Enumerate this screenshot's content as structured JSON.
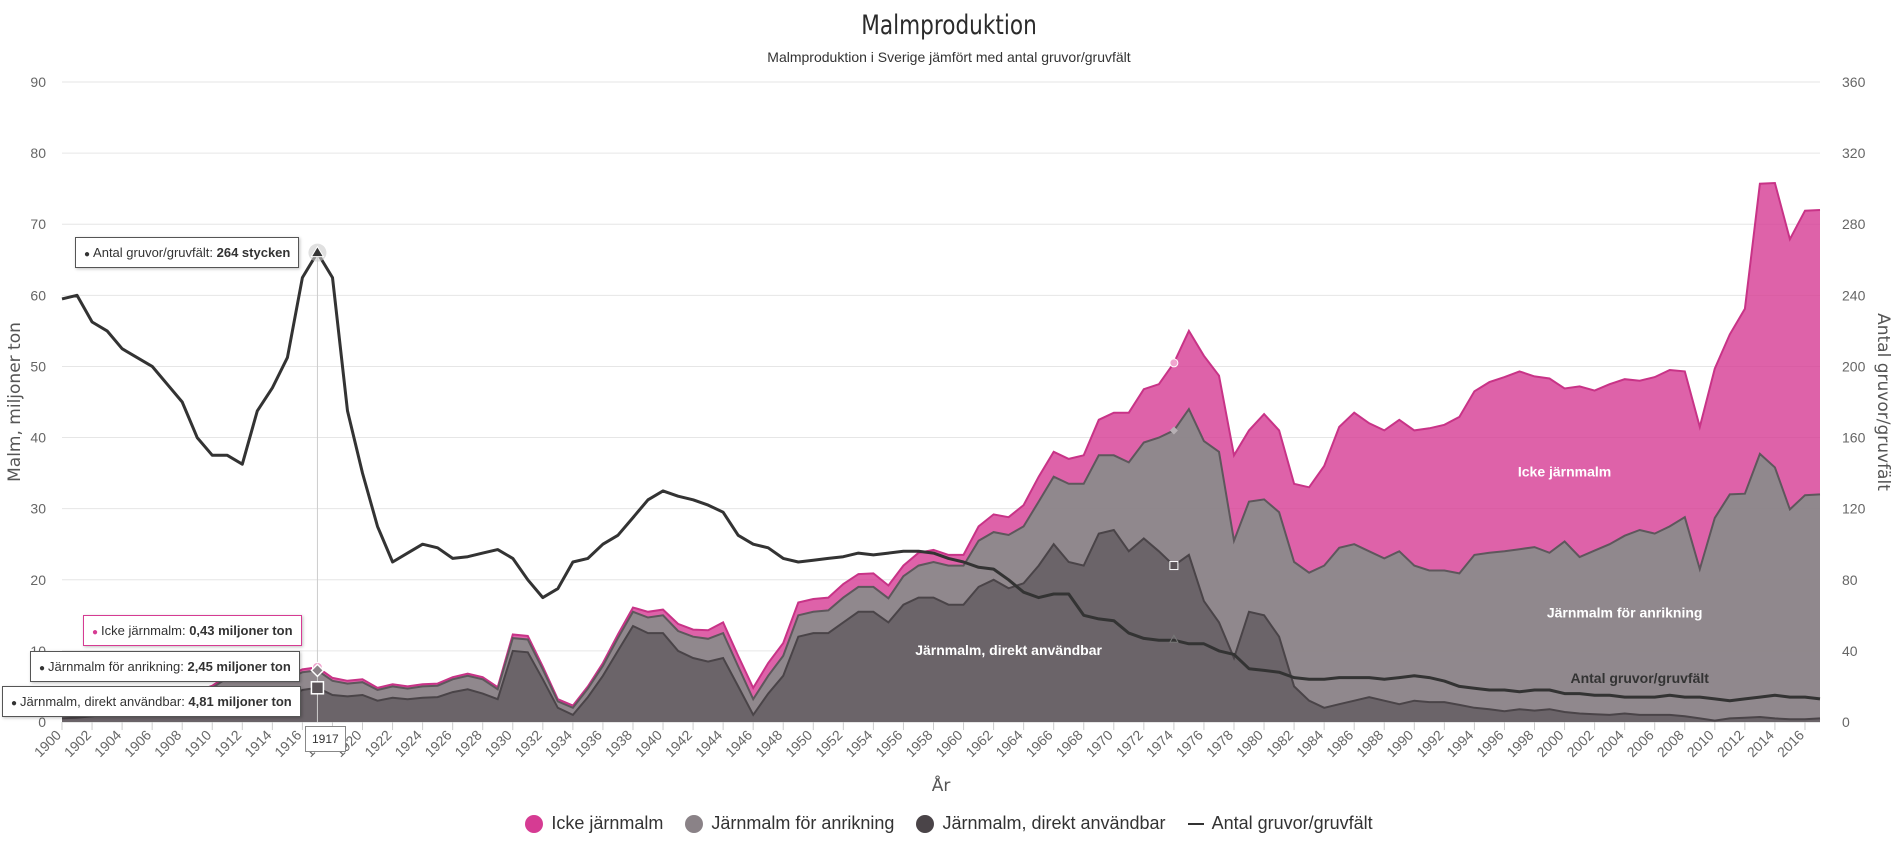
{
  "title": "Malmproduktion",
  "subtitle": "Malmproduktion i Sverige jämfört med antal gruvor/gruvfält",
  "colors": {
    "icke": "#d63b93",
    "anrikning": "#8a8287",
    "direkt": "#6b6469",
    "line": "#333333"
  },
  "chart_data": {
    "type": "area",
    "stacked": true,
    "xlabel": "År",
    "ylabel_left": "Malm, miljoner ton",
    "ylabel_right": "Antal gruvor/gruvfält",
    "ylim_left": [
      0,
      90
    ],
    "ylim_right": [
      0,
      360
    ],
    "yticks_left": [
      0,
      10,
      20,
      30,
      40,
      50,
      60,
      70,
      80,
      90
    ],
    "yticks_right": [
      0,
      40,
      80,
      120,
      160,
      200,
      240,
      280,
      320,
      360
    ],
    "x_start": 1900,
    "x_end": 2017,
    "xtick_labels": [
      "1900",
      "1902",
      "1904",
      "1906",
      "1908",
      "1910",
      "1912",
      "1914",
      "1916",
      "1918",
      "1920",
      "1922",
      "1924",
      "1926",
      "1928",
      "1930",
      "1932",
      "1934",
      "1936",
      "1938",
      "1940",
      "1942",
      "1944",
      "1946",
      "1948",
      "1950",
      "1952",
      "1954",
      "1956",
      "1958",
      "1960",
      "1962",
      "1964",
      "1966",
      "1968",
      "1970",
      "1972",
      "1974",
      "1976",
      "1978",
      "1980",
      "1982",
      "1984",
      "1986",
      "1988",
      "1990",
      "1992",
      "1994",
      "1996",
      "1998",
      "2000",
      "2002",
      "2004",
      "2006",
      "2008",
      "2010",
      "2012",
      "2014",
      "2016"
    ],
    "series": [
      {
        "name": "Järnmalm, direkt användbar",
        "type": "area",
        "axis": "left",
        "values": [
          0.5,
          0.6,
          0.8,
          1.0,
          1.2,
          1.4,
          1.6,
          1.8,
          2.0,
          2.5,
          3.0,
          4.0,
          4.6,
          4.8,
          4.9,
          3.5,
          4.5,
          4.81,
          3.8,
          3.6,
          3.8,
          3.0,
          3.4,
          3.2,
          3.4,
          3.5,
          4.2,
          4.6,
          4.0,
          3.2,
          10.0,
          9.8,
          6.0,
          2.0,
          1.0,
          3.5,
          6.5,
          10.0,
          13.5,
          12.5,
          12.5,
          10.0,
          9.0,
          8.5,
          9.0,
          5.0,
          1.0,
          4.0,
          6.5,
          12.0,
          12.5,
          12.5,
          14.0,
          15.5,
          15.5,
          14.0,
          16.5,
          17.5,
          17.5,
          16.5,
          16.5,
          19.0,
          20.0,
          18.8,
          19.5,
          22.0,
          25.0,
          22.5,
          22.0,
          26.5,
          27.0,
          24.0,
          25.8,
          24.0,
          22.0,
          23.5,
          17.0,
          14.0,
          9.0,
          15.5,
          15.0,
          12.0,
          5.0,
          3.0,
          2.0,
          2.5,
          3.0,
          3.5,
          3.0,
          2.5,
          3.0,
          2.8,
          2.8,
          2.4,
          2.0,
          1.8,
          1.5,
          1.8,
          1.6,
          1.8,
          1.4,
          1.2,
          1.1,
          1.0,
          1.2,
          1.0,
          1.0,
          1.0,
          0.8,
          0.5,
          0.2,
          0.5,
          0.6,
          0.7,
          0.5,
          0.4,
          0.4,
          0.5
        ]
      },
      {
        "name": "Järnmalm för anrikning",
        "type": "area",
        "axis": "left",
        "values": [
          0.5,
          0.5,
          0.6,
          0.6,
          0.7,
          0.8,
          0.9,
          1.0,
          1.2,
          1.5,
          1.8,
          2.2,
          2.5,
          2.5,
          2.5,
          2.5,
          2.5,
          2.45,
          2.0,
          1.8,
          1.8,
          1.5,
          1.6,
          1.5,
          1.6,
          1.6,
          1.8,
          1.9,
          2.0,
          1.4,
          1.8,
          1.8,
          1.4,
          0.9,
          1.0,
          1.2,
          1.4,
          1.8,
          2.0,
          2.2,
          2.5,
          2.8,
          3.0,
          3.2,
          3.5,
          2.8,
          2.2,
          2.5,
          2.8,
          3.0,
          3.0,
          3.2,
          3.5,
          3.5,
          3.5,
          3.4,
          4.0,
          4.5,
          5.0,
          5.5,
          5.5,
          6.5,
          6.7,
          7.5,
          8.0,
          9.0,
          9.5,
          11.0,
          11.5,
          11.0,
          10.5,
          12.5,
          13.5,
          16.0,
          19.0,
          20.5,
          22.5,
          24.0,
          16.5,
          15.5,
          16.3,
          17.5,
          17.5,
          18.0,
          20.0,
          22.0,
          22.0,
          20.5,
          20.0,
          21.5,
          19.0,
          18.5,
          18.5,
          18.5,
          21.5,
          22.0,
          22.5,
          22.5,
          23.0,
          22.0,
          24.0,
          22.0,
          23.0,
          24.0,
          25.0,
          26.0,
          25.5,
          26.5,
          28.0,
          21.0,
          28.5,
          31.5,
          31.5,
          37.0,
          35.3,
          29.5,
          31.5,
          31.5
        ]
      },
      {
        "name": "Icke järnmalm",
        "type": "area",
        "axis": "left",
        "values": [
          0.2,
          0.2,
          0.2,
          0.2,
          0.2,
          0.2,
          0.2,
          0.2,
          0.2,
          0.3,
          0.3,
          0.3,
          0.4,
          0.4,
          0.4,
          0.4,
          0.4,
          0.43,
          0.4,
          0.4,
          0.4,
          0.3,
          0.3,
          0.3,
          0.3,
          0.3,
          0.3,
          0.3,
          0.3,
          0.3,
          0.5,
          0.5,
          0.4,
          0.3,
          0.3,
          0.3,
          0.4,
          0.5,
          0.6,
          0.8,
          0.8,
          1.0,
          1.0,
          1.2,
          1.5,
          1.5,
          1.6,
          1.8,
          1.8,
          1.8,
          1.8,
          1.8,
          1.9,
          1.8,
          1.9,
          1.8,
          1.5,
          1.8,
          1.7,
          1.5,
          1.5,
          2.0,
          2.5,
          2.5,
          3.0,
          3.5,
          3.5,
          3.5,
          4.0,
          5.0,
          6.0,
          7.0,
          7.5,
          7.5,
          9.5,
          11.0,
          12.0,
          10.7,
          12.0,
          10.0,
          12.0,
          11.5,
          11.0,
          12.0,
          14.0,
          17.0,
          18.5,
          18.0,
          18.0,
          18.5,
          19.0,
          20.0,
          20.5,
          22.0,
          23.0,
          24.0,
          24.5,
          25.0,
          24.0,
          24.5,
          21.5,
          24.0,
          22.5,
          22.5,
          22.0,
          21.0,
          22.0,
          22.0,
          20.5,
          20.0,
          21.0,
          22.5,
          26.0,
          38.0,
          40.0,
          38.0,
          40.0,
          40.0
        ]
      },
      {
        "name": "Antal gruvor/gruvfält",
        "type": "line",
        "axis": "right",
        "values": [
          238,
          240,
          225,
          220,
          210,
          205,
          200,
          190,
          180,
          160,
          150,
          150,
          145,
          175,
          188,
          205,
          250,
          264,
          250,
          175,
          140,
          110,
          90,
          95,
          100,
          98,
          92,
          93,
          95,
          97,
          92,
          80,
          70,
          75,
          90,
          92,
          100,
          105,
          115,
          125,
          130,
          127,
          125,
          122,
          118,
          105,
          100,
          98,
          92,
          90,
          91,
          92,
          93,
          95,
          94,
          95,
          96,
          96,
          95,
          92,
          90,
          87,
          86,
          80,
          73,
          70,
          72,
          72,
          60,
          58,
          57,
          50,
          47,
          46,
          46,
          44,
          44,
          40,
          38,
          30,
          29,
          28,
          25,
          24,
          24,
          25,
          25,
          25,
          24,
          25,
          26,
          25,
          23,
          20,
          19,
          18,
          18,
          17,
          18,
          18,
          16,
          16,
          15,
          15,
          14,
          14,
          14,
          15,
          14,
          14,
          13,
          12,
          13,
          14,
          15,
          14,
          14,
          13
        ]
      }
    ],
    "area_labels": [
      {
        "text": "Icke järnmalm",
        "x": 2000,
        "y": 34.5,
        "style": "light"
      },
      {
        "text": "Järnmalm för anrikning",
        "x": 2004,
        "y": 14.7,
        "style": "light"
      },
      {
        "text": "Järnmalm, direkt användbar",
        "x": 1963,
        "y": 9.4,
        "style": "light"
      },
      {
        "text": "Antal gruvor/gruvfält",
        "x": 2005,
        "y": 5.5,
        "style": "dark"
      }
    ],
    "hover_year": "1917",
    "tooltips": [
      {
        "bullet_color": "#333333",
        "label": "Antal gruvor/gruvfält",
        "value": "264 stycken"
      },
      {
        "bullet_color": "#d63b93",
        "label": "Icke järnmalm",
        "value": "0,43 miljoner ton"
      },
      {
        "bullet_color": "#6b6469",
        "label": "Järnmalm för anrikning",
        "value": "2,45 miljoner ton"
      },
      {
        "bullet_color": "#333333",
        "label": "Järnmalm, direkt användbar",
        "value": "4,81 miljoner ton"
      }
    ],
    "legend": [
      {
        "label": "Icke järnmalm",
        "symbol": "dot",
        "color": "#d63b93"
      },
      {
        "label": "Järnmalm för anrikning",
        "symbol": "dot",
        "color": "#8a8287"
      },
      {
        "label": "Järnmalm, direkt användbar",
        "symbol": "dot",
        "color": "#4a4448"
      },
      {
        "label": "Antal gruvor/gruvfält",
        "symbol": "line",
        "color": "#333333"
      }
    ],
    "grid": true,
    "legend_position": "bottom-center"
  }
}
